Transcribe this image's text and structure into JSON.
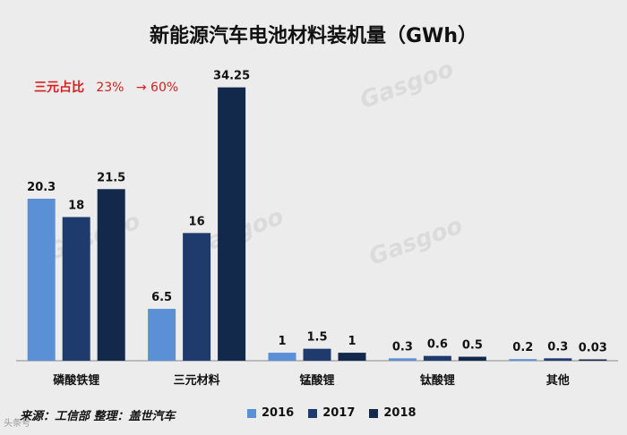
{
  "chart_data": {
    "type": "bar",
    "title": "新能源汽车电池材料装机量（GWh）",
    "categories": [
      "磷酸铁锂",
      "三元材料",
      "锰酸锂",
      "钛酸锂",
      "其他"
    ],
    "series": [
      {
        "name": "2016",
        "values": [
          20.3,
          6.5,
          1,
          0.3,
          0.2
        ],
        "color": "#5b8fd6"
      },
      {
        "name": "2017",
        "values": [
          18,
          16,
          1.5,
          0.6,
          0.3
        ],
        "color": "#1f3b6e"
      },
      {
        "name": "2018",
        "values": [
          21.5,
          34.25,
          1,
          0.5,
          0.03
        ],
        "color": "#13294b"
      }
    ],
    "data_labels": [
      [
        "20.3",
        "6.5",
        "1",
        "0.3",
        "0.2"
      ],
      [
        "18",
        "16",
        "1.5",
        "0.6",
        "0.3"
      ],
      [
        "21.5",
        "34.25",
        "1",
        "0.5",
        "0.03"
      ]
    ],
    "ylim": [
      0,
      36
    ],
    "grid": false,
    "legend_position": "bottom"
  },
  "annotation": {
    "label": "三元占比",
    "from": "23%",
    "arrow": "→",
    "to": "60%"
  },
  "source": "来源：工信部 整理：盖世汽车",
  "watermark": "Gasgoo",
  "corner_mark": "头条号"
}
